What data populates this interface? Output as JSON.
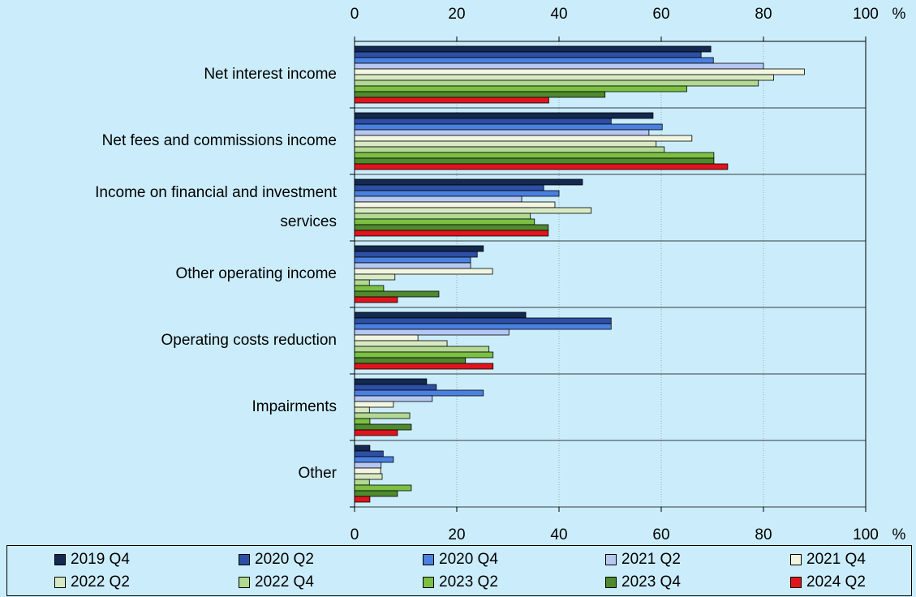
{
  "chart_data": {
    "type": "hbar",
    "categories": [
      "Net interest income",
      "Net fees and commissions income",
      "Income on financial and investment services",
      "Other operating income",
      "Operating costs reduction",
      "Impairments",
      "Other"
    ],
    "series": [
      {
        "name": "2019 Q4",
        "color": "#13294f",
        "values": [
          69.7,
          58.4,
          44.6,
          25.2,
          33.5,
          14.1,
          3
        ]
      },
      {
        "name": "2020 Q2",
        "color": "#2e4fa6",
        "values": [
          67.8,
          50.2,
          37,
          24,
          50.2,
          16,
          5.6
        ]
      },
      {
        "name": "2020 Q4",
        "color": "#4a80e0",
        "values": [
          70.2,
          60.2,
          40,
          22.7,
          50.2,
          25.2,
          7.6
        ]
      },
      {
        "name": "2021 Q2",
        "color": "#b6c8f2",
        "values": [
          80,
          57.6,
          32.7,
          22.7,
          30.2,
          15.2,
          5.2
        ]
      },
      {
        "name": "2021 Q4",
        "color": "#f2f6e0",
        "values": [
          88,
          66,
          39.2,
          27,
          12.4,
          7.6,
          5.1
        ]
      },
      {
        "name": "2022 Q2",
        "color": "#d8eac4",
        "values": [
          82,
          59,
          46.3,
          7.9,
          18.1,
          2.9,
          5.4
        ]
      },
      {
        "name": "2022 Q4",
        "color": "#b2d992",
        "values": [
          79,
          60.6,
          34.4,
          2.9,
          26.3,
          10.8,
          2.9
        ]
      },
      {
        "name": "2023 Q2",
        "color": "#7bc043",
        "values": [
          65,
          70.3,
          35.2,
          5.7,
          27.1,
          3,
          11.1
        ]
      },
      {
        "name": "2023 Q4",
        "color": "#4f8a2e",
        "values": [
          49,
          70.3,
          37.9,
          16.5,
          21.7,
          11.1,
          8.4
        ]
      },
      {
        "name": "2024 Q2",
        "color": "#e0141c",
        "values": [
          38,
          73,
          37.9,
          8.4,
          27.1,
          8.4,
          3
        ]
      }
    ],
    "xlim": [
      0,
      100
    ],
    "xticks": [
      0,
      20,
      40,
      60,
      80,
      100
    ],
    "x_unit": "%",
    "grid": true
  }
}
